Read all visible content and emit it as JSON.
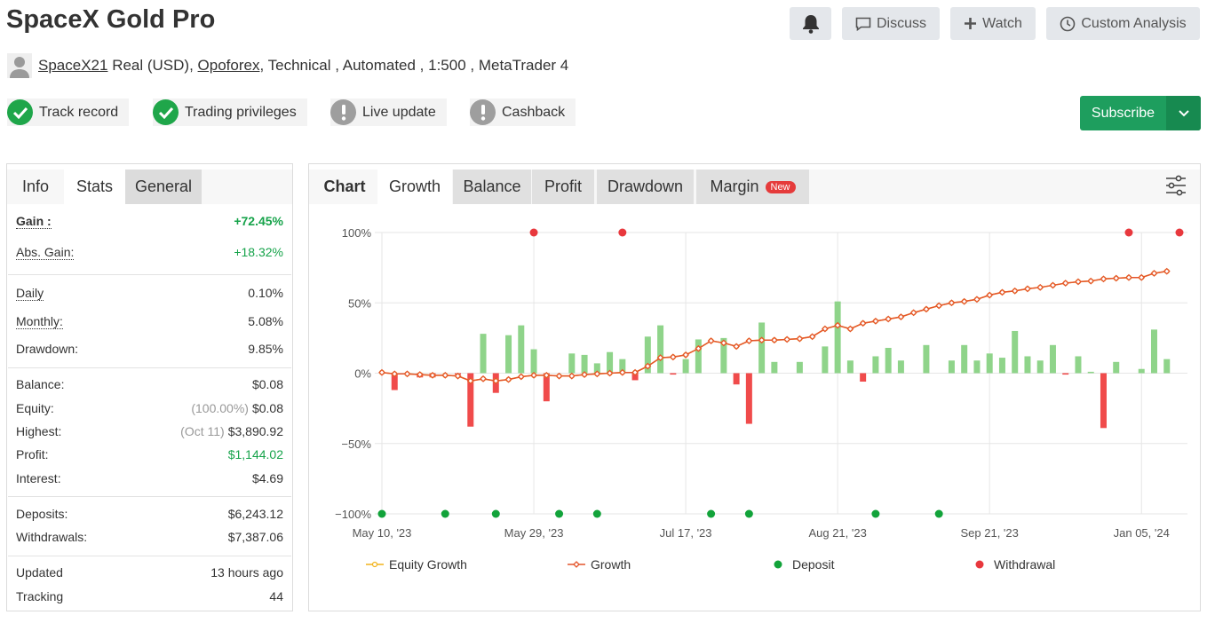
{
  "header": {
    "title": "SpaceX Gold Pro",
    "user": "SpaceX21",
    "account": "Real (USD),",
    "broker": "Opoforex",
    "details": ", Technical , Automated , 1:500 , MetaTrader 4"
  },
  "actions": {
    "discuss": "Discuss",
    "watch": "Watch",
    "custom_analysis": "Custom Analysis",
    "subscribe": "Subscribe"
  },
  "badges": [
    {
      "label": "Track record",
      "status": "ok"
    },
    {
      "label": "Trading privileges",
      "status": "ok"
    },
    {
      "label": "Live update",
      "status": "warn"
    },
    {
      "label": "Cashback",
      "status": "warn"
    }
  ],
  "stats": {
    "tabs": [
      "Info",
      "Stats",
      "General"
    ],
    "groups": [
      [
        {
          "label": "Gain :",
          "value": "+72.45%",
          "green": true,
          "bold": true,
          "dotted": true
        },
        {
          "label": "Abs. Gain:",
          "value": "+18.32%",
          "green": true,
          "dotted": true
        }
      ],
      [
        {
          "label": "Daily",
          "value": "0.10%",
          "dotted": true
        },
        {
          "label": "Monthly:",
          "value": "5.08%",
          "dotted": true
        },
        {
          "label": "Drawdown:",
          "value": "9.85%"
        }
      ],
      [
        {
          "label": "Balance:",
          "value": "$0.08"
        },
        {
          "label": "Equity:",
          "note": "(100.00%)",
          "value": "$0.08"
        },
        {
          "label": "Highest:",
          "note": "(Oct 11)",
          "value": "$3,890.92"
        },
        {
          "label": "Profit:",
          "value": "$1,144.02",
          "green": true
        },
        {
          "label": "Interest:",
          "value": "$4.69"
        }
      ],
      [
        {
          "label": "Deposits:",
          "value": "$6,243.12"
        },
        {
          "label": "Withdrawals:",
          "value": "$7,387.06"
        }
      ],
      [
        {
          "label": "Updated",
          "value": "13 hours ago"
        },
        {
          "label": "Tracking",
          "value": "44"
        }
      ]
    ]
  },
  "chart_panel": {
    "label": "Chart",
    "tabs": [
      "Growth",
      "Balance",
      "Profit",
      "Drawdown",
      "Margin"
    ],
    "new_badge": "New"
  },
  "chart_data": {
    "type": "line",
    "categories": [
      "May 10, '23",
      null,
      null,
      null,
      null,
      null,
      null,
      null,
      null,
      null,
      null,
      null,
      "May 29, '23",
      null,
      null,
      null,
      null,
      null,
      null,
      null,
      null,
      null,
      null,
      null,
      "Jul 17, '23",
      null,
      null,
      null,
      null,
      null,
      null,
      null,
      null,
      null,
      null,
      null,
      "Aug 21, '23",
      null,
      null,
      null,
      null,
      null,
      null,
      null,
      null,
      null,
      null,
      null,
      "Sep 21, '23",
      null,
      null,
      null,
      null,
      null,
      null,
      null,
      null,
      null,
      null,
      null,
      "Jan 05, '24",
      null,
      null,
      null
    ],
    "ylim": [
      -100,
      100
    ],
    "yticks": [
      {
        "value": -100,
        "label": "−100%"
      },
      {
        "value": -50,
        "label": "−50%"
      },
      {
        "value": 0,
        "label": "0%"
      },
      {
        "value": 50,
        "label": "50%"
      },
      {
        "value": 100,
        "label": "100%"
      }
    ],
    "grid": true,
    "bars": {
      "positive_color": "#8fd48a",
      "negative_color": "#f04b4b",
      "values": [
        null,
        -12,
        null,
        -3,
        -3,
        null,
        -1,
        -38,
        28,
        -14,
        27,
        34,
        17,
        -20,
        null,
        14,
        13,
        7,
        15,
        10,
        -5,
        26,
        34,
        -1,
        10,
        24,
        null,
        25,
        -8,
        -36,
        36,
        8,
        null,
        8,
        null,
        19,
        51,
        9,
        -6,
        12,
        18,
        9,
        null,
        20,
        null,
        9,
        20,
        9,
        14,
        11,
        30,
        12,
        9,
        20,
        -1,
        12,
        1,
        -39,
        8,
        null,
        3,
        31,
        10,
        null
      ]
    },
    "series": [
      {
        "name": "Equity Growth",
        "color": "#f2b31b",
        "line": true,
        "marker": "circle",
        "values": [
          0.5,
          -0.5,
          -0.5,
          -1,
          -1.5,
          -1.5,
          -2,
          -5.5,
          -4,
          -5.5,
          -4.5,
          -2.5,
          -1.5,
          -1.5,
          -2,
          -2,
          -1,
          -0.5,
          0,
          0.5,
          0.5,
          5,
          11,
          11.5,
          13,
          17.5,
          23,
          21.5,
          19,
          23,
          23.5,
          23.5,
          24,
          24.5,
          26,
          31.5,
          34,
          31.5,
          35.5,
          37,
          38.5,
          40,
          43,
          45.5,
          48,
          50,
          51,
          52.5,
          55.5,
          57.5,
          58.5,
          60,
          61,
          62.5,
          64,
          65,
          65.5,
          67,
          67.5,
          68,
          68,
          71,
          72.45,
          null
        ]
      },
      {
        "name": "Growth",
        "color": "#e4552b",
        "line": true,
        "marker": "diamond",
        "values": [
          0.5,
          -0.5,
          -0.5,
          -1,
          -1.5,
          -1.5,
          -2,
          -5.5,
          -4,
          -5.5,
          -4.5,
          -2.5,
          -1.5,
          -1.5,
          -2,
          -2,
          -1,
          -0.5,
          0,
          0.5,
          0.5,
          5,
          11,
          11.5,
          13,
          17.5,
          23,
          21.5,
          19,
          23,
          23.5,
          23.5,
          24,
          24.5,
          26,
          31.5,
          34,
          31.5,
          35.5,
          37,
          38.5,
          40,
          43,
          45.5,
          48,
          50,
          51,
          52.5,
          55.5,
          57.5,
          58.5,
          60,
          61,
          62.5,
          64,
          65,
          65.5,
          67,
          67.5,
          68,
          68,
          71,
          72.45,
          null
        ]
      },
      {
        "name": "Deposit",
        "color": "#12a33a",
        "line": false,
        "marker": "dot",
        "values": [
          -100,
          null,
          null,
          null,
          null,
          -100,
          null,
          null,
          null,
          -100,
          null,
          null,
          null,
          null,
          -100,
          null,
          null,
          -100,
          null,
          null,
          null,
          null,
          null,
          null,
          null,
          null,
          -100,
          null,
          null,
          -100,
          null,
          null,
          null,
          null,
          null,
          null,
          null,
          null,
          null,
          -100,
          null,
          null,
          null,
          null,
          -100,
          null,
          null,
          null,
          null,
          null,
          null,
          null,
          null,
          null,
          null,
          null,
          null,
          null,
          null,
          null,
          null,
          null,
          null,
          null
        ]
      },
      {
        "name": "Withdrawal",
        "color": "#e8383d",
        "line": false,
        "marker": "dot",
        "values": [
          null,
          null,
          null,
          null,
          null,
          null,
          null,
          null,
          null,
          null,
          null,
          null,
          100,
          null,
          null,
          null,
          null,
          null,
          null,
          100,
          null,
          null,
          null,
          null,
          null,
          null,
          null,
          null,
          null,
          null,
          null,
          null,
          null,
          null,
          null,
          null,
          null,
          null,
          null,
          null,
          null,
          null,
          null,
          null,
          null,
          null,
          null,
          null,
          null,
          null,
          null,
          null,
          null,
          null,
          null,
          null,
          null,
          null,
          null,
          100,
          null,
          null,
          null,
          100
        ]
      }
    ]
  }
}
